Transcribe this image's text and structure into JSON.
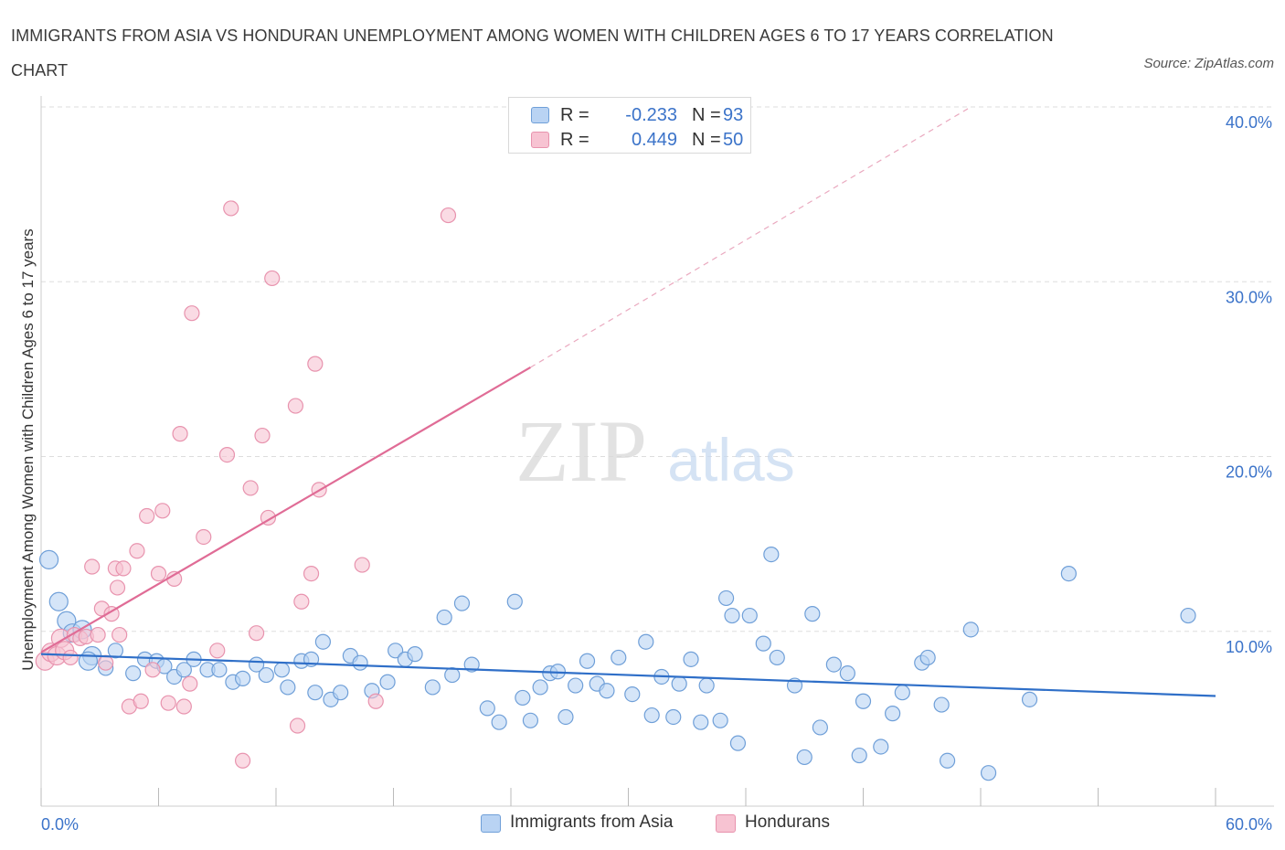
{
  "title": "IMMIGRANTS FROM ASIA VS HONDURAN UNEMPLOYMENT AMONG WOMEN WITH CHILDREN AGES 6 TO 17 YEARS CORRELATION CHART",
  "source": "Source: ZipAtlas.com",
  "watermark": {
    "zip": "ZIP",
    "atlas": "atlas"
  },
  "legend_top": [
    {
      "r_label": "R =",
      "r_value": "-0.233",
      "n_label": "N =",
      "n_value": "93"
    },
    {
      "r_label": "R =",
      "r_value": "0.449",
      "n_label": "N =",
      "n_value": "50"
    }
  ],
  "legend_bottom": [
    "Immigrants from Asia",
    "Hondurans"
  ],
  "colors": {
    "asia_fill": "#b9d3f3",
    "asia_stroke": "#6f9fd8",
    "asia_line": "#2f6fc8",
    "hond_fill": "#f7c3d2",
    "hond_stroke": "#e893ae",
    "hond_line": "#e06c96",
    "tick_label": "#3b73c9",
    "grid": "#dddddd"
  },
  "chart_data": {
    "type": "scatter",
    "title": "IMMIGRANTS FROM ASIA VS HONDURAN UNEMPLOYMENT AMONG WOMEN WITH CHILDREN AGES 6 TO 17 YEARS CORRELATION CHART",
    "xlabel": "",
    "ylabel": "Unemployment Among Women with Children Ages 6 to 17 years",
    "xlim": [
      0,
      60
    ],
    "ylim": [
      0,
      40
    ],
    "x_tick_labels": [
      "0.0%",
      "60.0%"
    ],
    "y_ticks": [
      10,
      20,
      30,
      40
    ],
    "y_tick_labels": [
      "10.0%",
      "20.0%",
      "30.0%",
      "40.0%"
    ],
    "grid": true,
    "legend_position": "top-center",
    "series": [
      {
        "name": "Immigrants from Asia",
        "trend": {
          "x": [
            0,
            60
          ],
          "y": [
            8.7,
            6.3
          ]
        },
        "points": [
          [
            0.4,
            14.1
          ],
          [
            0.9,
            11.7
          ],
          [
            1.3,
            10.6
          ],
          [
            1.6,
            9.9
          ],
          [
            2.1,
            10.1
          ],
          [
            2.6,
            8.6
          ],
          [
            3.3,
            7.9
          ],
          [
            3.8,
            8.9
          ],
          [
            4.7,
            7.6
          ],
          [
            5.3,
            8.4
          ],
          [
            5.9,
            8.3
          ],
          [
            6.3,
            8.0
          ],
          [
            6.8,
            7.4
          ],
          [
            7.3,
            7.8
          ],
          [
            7.8,
            8.4
          ],
          [
            8.5,
            7.8
          ],
          [
            9.1,
            7.8
          ],
          [
            9.8,
            7.1
          ],
          [
            10.3,
            7.3
          ],
          [
            11.0,
            8.1
          ],
          [
            11.5,
            7.5
          ],
          [
            12.3,
            7.8
          ],
          [
            12.6,
            6.8
          ],
          [
            13.3,
            8.3
          ],
          [
            13.8,
            8.4
          ],
          [
            14.4,
            9.4
          ],
          [
            14.8,
            6.1
          ],
          [
            15.3,
            6.5
          ],
          [
            15.8,
            8.6
          ],
          [
            16.3,
            8.2
          ],
          [
            16.9,
            6.6
          ],
          [
            17.7,
            7.1
          ],
          [
            18.1,
            8.9
          ],
          [
            18.6,
            8.4
          ],
          [
            19.1,
            8.7
          ],
          [
            20.0,
            6.8
          ],
          [
            20.6,
            10.8
          ],
          [
            21.0,
            7.5
          ],
          [
            21.5,
            11.6
          ],
          [
            22.0,
            8.1
          ],
          [
            22.8,
            5.6
          ],
          [
            23.4,
            4.8
          ],
          [
            24.2,
            11.7
          ],
          [
            24.6,
            6.2
          ],
          [
            25.0,
            4.9
          ],
          [
            25.5,
            6.8
          ],
          [
            26.0,
            7.6
          ],
          [
            26.4,
            7.7
          ],
          [
            26.8,
            5.1
          ],
          [
            27.3,
            6.9
          ],
          [
            27.9,
            8.3
          ],
          [
            28.4,
            7.0
          ],
          [
            28.9,
            6.6
          ],
          [
            29.5,
            8.5
          ],
          [
            30.2,
            6.4
          ],
          [
            30.9,
            9.4
          ],
          [
            31.2,
            5.2
          ],
          [
            31.7,
            7.4
          ],
          [
            32.3,
            5.1
          ],
          [
            32.6,
            7.0
          ],
          [
            33.2,
            8.4
          ],
          [
            33.7,
            4.8
          ],
          [
            34.0,
            6.9
          ],
          [
            34.7,
            4.9
          ],
          [
            35.0,
            11.9
          ],
          [
            35.3,
            10.9
          ],
          [
            35.6,
            3.6
          ],
          [
            36.2,
            10.9
          ],
          [
            36.9,
            9.3
          ],
          [
            37.3,
            14.4
          ],
          [
            37.6,
            8.5
          ],
          [
            38.5,
            6.9
          ],
          [
            39.0,
            2.8
          ],
          [
            39.4,
            11.0
          ],
          [
            39.8,
            4.5
          ],
          [
            40.5,
            8.1
          ],
          [
            41.2,
            7.6
          ],
          [
            41.8,
            2.9
          ],
          [
            42.0,
            6.0
          ],
          [
            42.9,
            3.4
          ],
          [
            43.5,
            5.3
          ],
          [
            44.0,
            6.5
          ],
          [
            45.0,
            8.2
          ],
          [
            45.3,
            8.5
          ],
          [
            46.0,
            5.8
          ],
          [
            46.3,
            2.6
          ],
          [
            47.5,
            10.1
          ],
          [
            48.4,
            1.9
          ],
          [
            50.5,
            6.1
          ],
          [
            52.5,
            13.3
          ],
          [
            58.6,
            10.9
          ],
          [
            2.4,
            8.3
          ],
          [
            14.0,
            6.5
          ]
        ]
      },
      {
        "name": "Hondurans",
        "trend": {
          "x": [
            0,
            25
          ],
          "y": [
            8.8,
            25.1
          ]
        },
        "trend_extension": {
          "x": [
            25,
            47.5
          ],
          "y": [
            25.1,
            40
          ]
        },
        "points": [
          [
            0.2,
            8.3
          ],
          [
            0.5,
            8.8
          ],
          [
            0.8,
            8.6
          ],
          [
            1.0,
            9.6
          ],
          [
            1.2,
            8.9
          ],
          [
            1.5,
            8.5
          ],
          [
            1.7,
            9.8
          ],
          [
            2.0,
            9.6
          ],
          [
            2.3,
            9.7
          ],
          [
            2.6,
            13.7
          ],
          [
            2.9,
            9.8
          ],
          [
            3.1,
            11.3
          ],
          [
            3.3,
            8.2
          ],
          [
            3.6,
            11.0
          ],
          [
            3.8,
            13.6
          ],
          [
            3.9,
            12.5
          ],
          [
            4.0,
            9.8
          ],
          [
            4.2,
            13.6
          ],
          [
            4.5,
            5.7
          ],
          [
            4.9,
            14.6
          ],
          [
            5.1,
            6.0
          ],
          [
            5.4,
            16.6
          ],
          [
            5.7,
            7.8
          ],
          [
            6.0,
            13.3
          ],
          [
            6.2,
            16.9
          ],
          [
            6.5,
            5.9
          ],
          [
            6.8,
            13.0
          ],
          [
            7.1,
            21.3
          ],
          [
            7.3,
            5.7
          ],
          [
            7.6,
            7.0
          ],
          [
            7.7,
            28.2
          ],
          [
            8.3,
            15.4
          ],
          [
            9.0,
            8.9
          ],
          [
            9.5,
            20.1
          ],
          [
            9.7,
            34.2
          ],
          [
            10.3,
            2.6
          ],
          [
            10.7,
            18.2
          ],
          [
            11.0,
            9.9
          ],
          [
            11.3,
            21.2
          ],
          [
            11.6,
            16.5
          ],
          [
            11.8,
            30.2
          ],
          [
            13.0,
            22.9
          ],
          [
            13.1,
            4.6
          ],
          [
            13.3,
            11.7
          ],
          [
            13.8,
            13.3
          ],
          [
            14.0,
            25.3
          ],
          [
            14.2,
            18.1
          ],
          [
            16.4,
            13.8
          ],
          [
            17.1,
            6.0
          ],
          [
            20.8,
            33.8
          ]
        ]
      }
    ]
  }
}
